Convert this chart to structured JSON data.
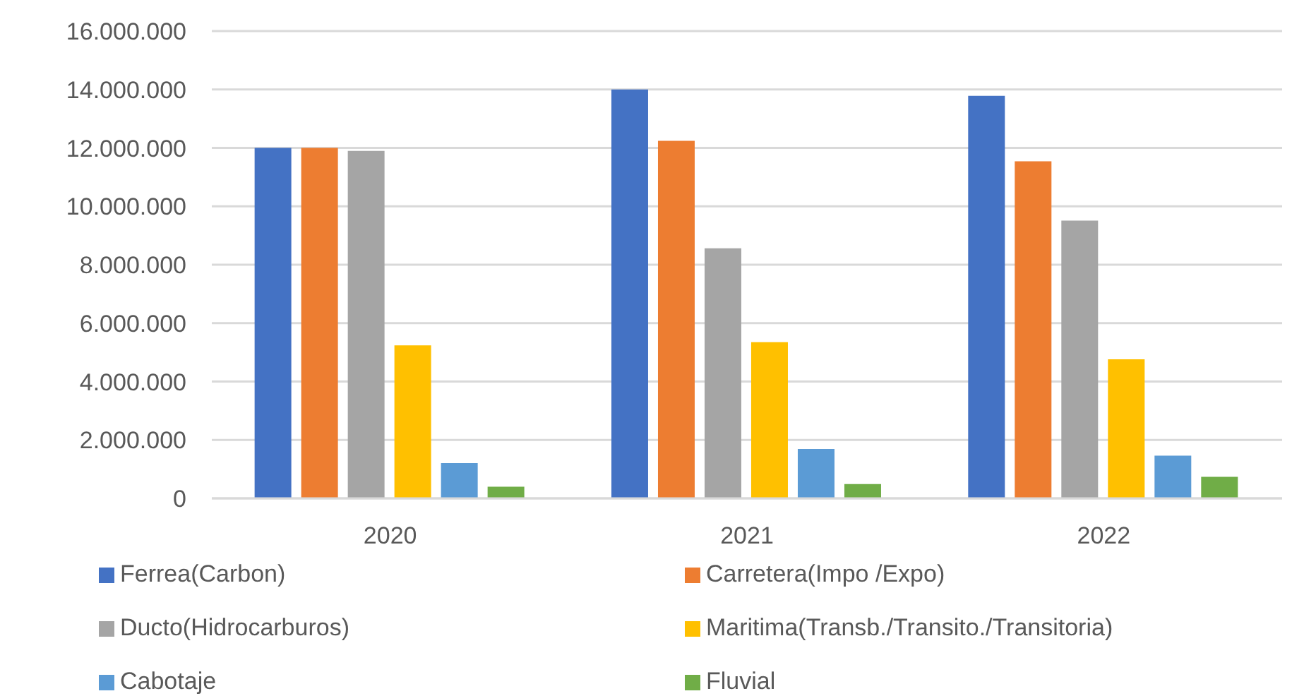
{
  "chart_data": {
    "type": "bar",
    "categories": [
      "2020",
      "2021",
      "2022"
    ],
    "series": [
      {
        "name": "Ferrea(Carbon)",
        "color": "#4472c4",
        "values": [
          12000000,
          14000000,
          13780000
        ]
      },
      {
        "name": "Carretera(Impo /Expo)",
        "color": "#ed7d31",
        "values": [
          12000000,
          12240000,
          11540000
        ]
      },
      {
        "name": "Ducto(Hidrocarburos)",
        "color": "#a5a5a5",
        "values": [
          11900000,
          8560000,
          9510000
        ]
      },
      {
        "name": "Maritima(Transb./Transito./Transitoria)",
        "color": "#ffc000",
        "values": [
          5240000,
          5350000,
          4760000
        ]
      },
      {
        "name": "Cabotaje",
        "color": "#5b9bd5",
        "values": [
          1210000,
          1690000,
          1460000
        ]
      },
      {
        "name": "Fluvial",
        "color": "#70ad47",
        "values": [
          400000,
          490000,
          740000
        ]
      }
    ],
    "ylim": [
      0,
      16000000
    ],
    "yticks": [
      {
        "value": 0,
        "label": "0"
      },
      {
        "value": 2000000,
        "label": "2.000.000"
      },
      {
        "value": 4000000,
        "label": "4.000.000"
      },
      {
        "value": 6000000,
        "label": "6.000.000"
      },
      {
        "value": 8000000,
        "label": "8.000.000"
      },
      {
        "value": 10000000,
        "label": "10.000.000"
      },
      {
        "value": 12000000,
        "label": "12.000.000"
      },
      {
        "value": 14000000,
        "label": "14.000.000"
      },
      {
        "value": 16000000,
        "label": "16.000.000"
      }
    ],
    "grid": "y",
    "legend": "bottom"
  }
}
